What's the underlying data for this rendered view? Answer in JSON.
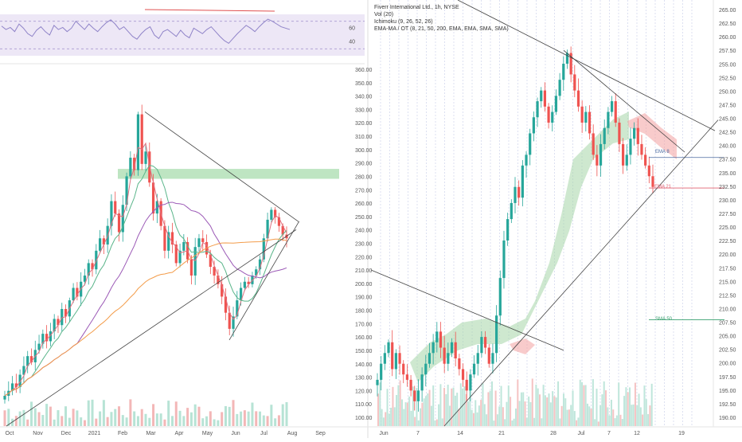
{
  "chart_data": [
    {
      "type": "line",
      "panel": "rsi",
      "y_ticks": [
        40,
        60
      ],
      "rsi_values": [
        63,
        58,
        61,
        55,
        66,
        60,
        52,
        48,
        57,
        62,
        55,
        50,
        64,
        58,
        61,
        55,
        60,
        70,
        64,
        58,
        66,
        60,
        55,
        62,
        68,
        72,
        66,
        58,
        62,
        55,
        48,
        44,
        52,
        58,
        62,
        50,
        45,
        55,
        58,
        53,
        48,
        57,
        50,
        46,
        60,
        56,
        52,
        58,
        62,
        55,
        48,
        42,
        38,
        45,
        52,
        58,
        64,
        60,
        55,
        62,
        68,
        73,
        70,
        66,
        62,
        60,
        58
      ]
    },
    {
      "type": "candlestick",
      "panel": "daily",
      "x_tick_labels": [
        "Oct",
        "Nov",
        "Dec",
        "2021",
        "Feb",
        "Mar",
        "Apr",
        "May",
        "Jun",
        "Jul",
        "Aug",
        "Sep"
      ],
      "closes": [
        108,
        112,
        118,
        115,
        125,
        132,
        140,
        135,
        145,
        150,
        158,
        152,
        160,
        170,
        165,
        178,
        172,
        185,
        195,
        188,
        200,
        205,
        215,
        210,
        225,
        235,
        230,
        245,
        265,
        255,
        240,
        262,
        285,
        300,
        290,
        335,
        295,
        305,
        280,
        255,
        265,
        245,
        225,
        240,
        230,
        215,
        225,
        232,
        218,
        205,
        228,
        235,
        232,
        222,
        212,
        205,
        198,
        188,
        175,
        162,
        172,
        185,
        195,
        200,
        198,
        205,
        210,
        218,
        235,
        250,
        258,
        252,
        245,
        238,
        235
      ],
      "horizontal_zone_note": "",
      "y_range": [
        90,
        345
      ]
    },
    {
      "type": "candlestick",
      "panel": "hourly",
      "legend": [
        "Fiverr International Ltd., 1h, NYSE",
        "Vol (20)",
        "Ichimoku (9, 26, 52, 26)",
        "EMA-MA / OT (8, 21, 50, 200, EMA, EMA, SMA, SMA)"
      ],
      "x_tick_labels": [
        "Jun",
        "7",
        "14",
        "21",
        "28",
        "Jul",
        "7",
        "12",
        "19"
      ],
      "right_axis_ticks": [
        "265.00",
        "262.50",
        "260.00",
        "257.50",
        "255.00",
        "252.50",
        "250.00",
        "247.50",
        "245.00",
        "242.50",
        "240.00",
        "237.50",
        "235.00",
        "232.50",
        "230.00",
        "227.50",
        "225.00",
        "222.50",
        "220.00",
        "217.50",
        "215.00",
        "212.50",
        "210.00",
        "207.50",
        "205.00",
        "202.50",
        "200.00",
        "197.50",
        "195.00",
        "192.50",
        "190.00"
      ],
      "left_axis_ticks": [
        "360.00",
        "350.00",
        "340.00",
        "330.00",
        "320.00",
        "310.00",
        "300.00",
        "290.00",
        "280.00",
        "270.00",
        "260.00",
        "250.00",
        "240.00",
        "230.00",
        "220.00",
        "210.00",
        "200.00",
        "190.00",
        "180.00",
        "170.00",
        "160.00",
        "150.00",
        "140.00",
        "130.00",
        "120.00",
        "110.00",
        "100.00"
      ],
      "line_labels": {
        "ema8": "EMA 8",
        "ema21": "EMA 21",
        "sma50": "SMA 50"
      },
      "closes": [
        196,
        199,
        201,
        203,
        198,
        201,
        199,
        197,
        196,
        194,
        192,
        194,
        197,
        199,
        201,
        203,
        205,
        202,
        199,
        201,
        203,
        200,
        198,
        196,
        194,
        197,
        199,
        201,
        204,
        202,
        199,
        201,
        208,
        215,
        222,
        226,
        229,
        232,
        230,
        236,
        238,
        242,
        245,
        248,
        250,
        247,
        244,
        246,
        249,
        252,
        255,
        257,
        253,
        250,
        247,
        244,
        246,
        242,
        238,
        236,
        240,
        243,
        246,
        248,
        244,
        240,
        236,
        238,
        241,
        243,
        240,
        238,
        236,
        234,
        232
      ],
      "y_range": [
        189,
        266
      ]
    }
  ]
}
